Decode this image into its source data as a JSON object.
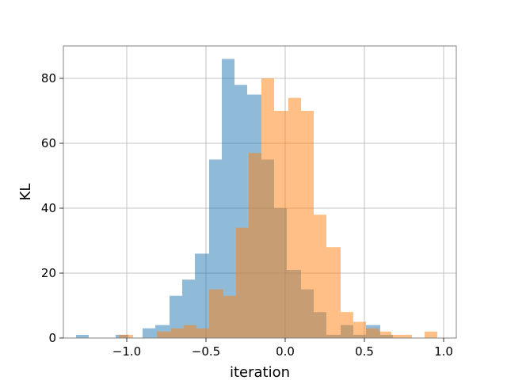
{
  "chart_data": {
    "type": "bar",
    "subtype": "overlapping-histogram",
    "title": "",
    "xlabel": "iteration",
    "ylabel": "KL",
    "xlim": [
      -1.4,
      1.08
    ],
    "ylim": [
      0,
      90
    ],
    "xticks": [
      -1.0,
      -0.5,
      0.0,
      0.5,
      1.0
    ],
    "xtick_labels": [
      "−1.0",
      "−0.5",
      "0.0",
      "0.5",
      "1.0"
    ],
    "yticks": [
      0,
      20,
      40,
      60,
      80
    ],
    "ytick_labels": [
      "0",
      "20",
      "40",
      "60",
      "80"
    ],
    "grid": true,
    "legend": "none",
    "series": [
      {
        "color": "#1f77b4",
        "opacity": 0.5,
        "bins": [
          {
            "x0": -1.32,
            "x1": -1.24,
            "count": 1
          },
          {
            "x0": -1.07,
            "x1": -0.99,
            "count": 1
          },
          {
            "x0": -0.9,
            "x1": -0.82,
            "count": 3
          },
          {
            "x0": -0.82,
            "x1": -0.73,
            "count": 4
          },
          {
            "x0": -0.73,
            "x1": -0.65,
            "count": 13
          },
          {
            "x0": -0.65,
            "x1": -0.57,
            "count": 18
          },
          {
            "x0": -0.57,
            "x1": -0.48,
            "count": 26
          },
          {
            "x0": -0.48,
            "x1": -0.4,
            "count": 55
          },
          {
            "x0": -0.4,
            "x1": -0.32,
            "count": 86
          },
          {
            "x0": -0.32,
            "x1": -0.24,
            "count": 78
          },
          {
            "x0": -0.24,
            "x1": -0.15,
            "count": 75
          },
          {
            "x0": -0.15,
            "x1": -0.07,
            "count": 55
          },
          {
            "x0": -0.07,
            "x1": 0.01,
            "count": 40
          },
          {
            "x0": 0.01,
            "x1": 0.1,
            "count": 21
          },
          {
            "x0": 0.1,
            "x1": 0.18,
            "count": 15
          },
          {
            "x0": 0.18,
            "x1": 0.26,
            "count": 8
          },
          {
            "x0": 0.26,
            "x1": 0.35,
            "count": 1
          },
          {
            "x0": 0.35,
            "x1": 0.43,
            "count": 4
          },
          {
            "x0": 0.43,
            "x1": 0.51,
            "count": 1
          },
          {
            "x0": 0.51,
            "x1": 0.6,
            "count": 4
          },
          {
            "x0": 0.6,
            "x1": 0.68,
            "count": 1
          }
        ]
      },
      {
        "color": "#ff7f0e",
        "opacity": 0.5,
        "bins": [
          {
            "x0": -1.05,
            "x1": -0.96,
            "count": 1
          },
          {
            "x0": -0.81,
            "x1": -0.72,
            "count": 2
          },
          {
            "x0": -0.72,
            "x1": -0.64,
            "count": 3
          },
          {
            "x0": -0.64,
            "x1": -0.56,
            "count": 4
          },
          {
            "x0": -0.56,
            "x1": -0.48,
            "count": 3
          },
          {
            "x0": -0.48,
            "x1": -0.39,
            "count": 15
          },
          {
            "x0": -0.39,
            "x1": -0.31,
            "count": 13
          },
          {
            "x0": -0.31,
            "x1": -0.23,
            "count": 34
          },
          {
            "x0": -0.23,
            "x1": -0.15,
            "count": 57
          },
          {
            "x0": -0.15,
            "x1": -0.07,
            "count": 80
          },
          {
            "x0": -0.07,
            "x1": 0.02,
            "count": 70
          },
          {
            "x0": 0.02,
            "x1": 0.1,
            "count": 74
          },
          {
            "x0": 0.1,
            "x1": 0.18,
            "count": 70
          },
          {
            "x0": 0.18,
            "x1": 0.26,
            "count": 38
          },
          {
            "x0": 0.26,
            "x1": 0.35,
            "count": 28
          },
          {
            "x0": 0.35,
            "x1": 0.43,
            "count": 8
          },
          {
            "x0": 0.43,
            "x1": 0.51,
            "count": 5
          },
          {
            "x0": 0.51,
            "x1": 0.59,
            "count": 3
          },
          {
            "x0": 0.59,
            "x1": 0.67,
            "count": 2
          },
          {
            "x0": 0.67,
            "x1": 0.76,
            "count": 1
          },
          {
            "x0": 0.76,
            "x1": 0.8,
            "count": 1
          },
          {
            "x0": 0.88,
            "x1": 0.96,
            "count": 2
          }
        ]
      }
    ]
  }
}
